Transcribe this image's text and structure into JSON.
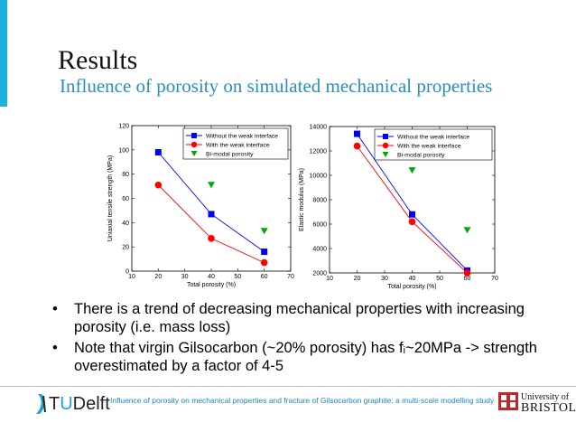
{
  "slide": {
    "title": "Results",
    "subtitle": "Influence of porosity on simulated mechanical properties",
    "bullets": [
      "There is a trend of decreasing mechanical properties with increasing porosity (i.e. mass loss)",
      "Note that virgin Gilsocarbon (~20% porosity) has fᵢ~20MPa -> strength overestimated by a factor of 4-5"
    ],
    "bullet_symbol": "•"
  },
  "footer": {
    "logo_t": "T",
    "logo_u": "U",
    "logo_delft": "Delft",
    "text": "Influence of porosity on mechanical properties and fracture of Gilsocarbon graphite: a multi-scale modelling study",
    "university_line1": "University of",
    "university_line2": "BRISTOL"
  },
  "colors": {
    "accent": "#1fb0e0",
    "subtitle": "#2a8fc0",
    "series_without": "#0000ff",
    "series_with": "#ff0000",
    "series_bimodal": "#00aa00"
  },
  "chart_data": [
    {
      "type": "line",
      "xlabel": "Total porosity (%)",
      "ylabel": "Uniaxial tensile strength (MPa)",
      "xlim": [
        10,
        70
      ],
      "ylim": [
        0,
        120
      ],
      "xticks": [
        10,
        20,
        30,
        40,
        50,
        60,
        70
      ],
      "yticks": [
        0,
        20,
        40,
        60,
        80,
        100,
        120
      ],
      "legend_position": "top-right",
      "series": [
        {
          "name": "Without the weak interface",
          "marker": "square",
          "x": [
            20,
            40,
            60
          ],
          "values": [
            98,
            47,
            16
          ]
        },
        {
          "name": "With the weak interface",
          "marker": "circle",
          "x": [
            20,
            40,
            60
          ],
          "values": [
            71,
            27,
            7
          ]
        },
        {
          "name": "Bi-modal porosity",
          "marker": "triangle-down",
          "x": [
            40,
            60
          ],
          "values": [
            71,
            33
          ]
        }
      ]
    },
    {
      "type": "line",
      "xlabel": "Total porosity (%)",
      "ylabel": "Elastic modulus (MPa)",
      "xlim": [
        10,
        70
      ],
      "ylim": [
        2000,
        14000
      ],
      "xticks": [
        10,
        20,
        30,
        40,
        50,
        60,
        70
      ],
      "yticks": [
        2000,
        4000,
        6000,
        8000,
        10000,
        12000,
        14000
      ],
      "legend_position": "top-right",
      "series": [
        {
          "name": "Without the weak interface",
          "marker": "square",
          "x": [
            20,
            40,
            60
          ],
          "values": [
            13400,
            6800,
            2200
          ]
        },
        {
          "name": "With the weak interface",
          "marker": "circle",
          "x": [
            20,
            40,
            60
          ],
          "values": [
            12400,
            6200,
            2000
          ]
        },
        {
          "name": "Bi-modal porosity",
          "marker": "triangle-down",
          "x": [
            40,
            60
          ],
          "values": [
            10400,
            5500
          ]
        }
      ]
    }
  ]
}
